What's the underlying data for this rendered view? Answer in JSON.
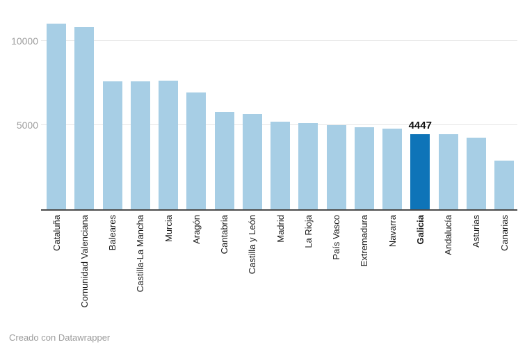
{
  "chart": {
    "credit": "Creado con Datawrapper"
  },
  "chart_data": {
    "type": "bar",
    "title": "",
    "xlabel": "",
    "ylabel": "",
    "categories": [
      "Cataluña",
      "Comunidad Valenciana",
      "Baleares",
      "Castilla-La Mancha",
      "Murcia",
      "Aragón",
      "Cantabria",
      "Castilla y León",
      "Madrid",
      "La Rioja",
      "País Vasco",
      "Extremadura",
      "Navarra",
      "Galicia",
      "Andalucía",
      "Asturias",
      "Canarias"
    ],
    "values": [
      11000,
      10790,
      7580,
      7580,
      7620,
      6940,
      5770,
      5630,
      5180,
      5110,
      4970,
      4880,
      4770,
      4447,
      4440,
      4250,
      2870
    ],
    "highlight_index": 13,
    "highlight_category": "Galicia",
    "highlight_value_label": "4447",
    "ylim": [
      0,
      12000
    ],
    "yticks": [
      {
        "value": 5000,
        "label": "5000"
      },
      {
        "value": 10000,
        "label": "10000"
      }
    ],
    "grid": true,
    "legend_position": "none",
    "bar_color": "#a7cee5",
    "highlight_color": "#0e74b8",
    "axis_color": "#4a4a4a",
    "grid_color": "#e4e4e4",
    "tick_label_color": "#9d9d9d",
    "category_label_color": "#1a1a1a"
  }
}
